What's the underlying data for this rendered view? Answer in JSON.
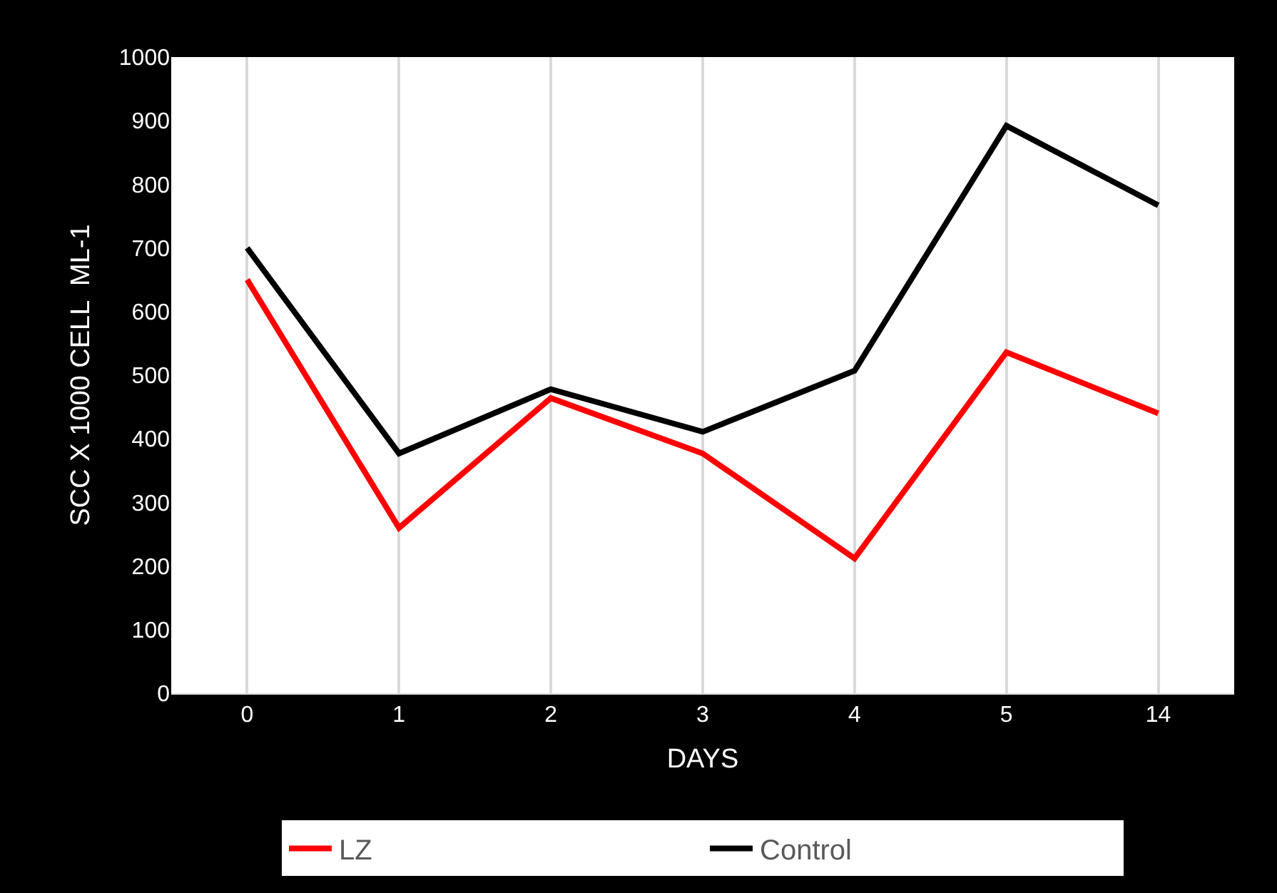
{
  "chart_data": {
    "type": "line",
    "xlabel": "DAYS",
    "ylabel": "SCC X 1000 CELL  ML-1",
    "categories": [
      "0",
      "1",
      "2",
      "3",
      "4",
      "5",
      "14"
    ],
    "series": [
      {
        "name": "LZ",
        "color": "#ff0000",
        "values": [
          650,
          260,
          464,
          377,
          212,
          536,
          440
        ]
      },
      {
        "name": "Control",
        "color": "#000000",
        "values": [
          700,
          377,
          478,
          411,
          507,
          892,
          767
        ]
      }
    ],
    "ylim": [
      0,
      1000
    ],
    "yticks": [
      0,
      100,
      200,
      300,
      400,
      500,
      600,
      700,
      800,
      900,
      1000
    ],
    "grid": "x",
    "legend": "bottom",
    "marker": "none",
    "line_style": "solid"
  }
}
